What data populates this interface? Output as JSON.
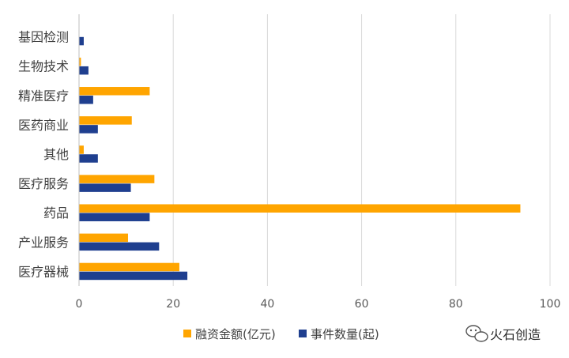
{
  "chart_data": {
    "type": "bar",
    "orientation": "horizontal",
    "categories": [
      "基因检测",
      "生物技术",
      "精准医疗",
      "医药商业",
      "其他",
      "医疗服务",
      "药品",
      "产业服务",
      "医疗器械"
    ],
    "series": [
      {
        "name": "融资金额(亿元)",
        "color": "#FFA500",
        "values": [
          0,
          0.4,
          15,
          11.2,
          1,
          16,
          93.7,
          10.4,
          21.3
        ]
      },
      {
        "name": "事件数量(起)",
        "color": "#1F3F8F",
        "values": [
          1,
          2,
          3,
          4,
          4,
          11,
          15,
          17,
          23
        ]
      }
    ],
    "xlim": [
      0,
      100
    ],
    "xticks": [
      0,
      20,
      40,
      60,
      80,
      100
    ],
    "grid": true,
    "legend_position": "bottom",
    "xlabel": "",
    "ylabel": ""
  },
  "watermark": {
    "icon": "wechat-icon",
    "text": "火石创造"
  }
}
